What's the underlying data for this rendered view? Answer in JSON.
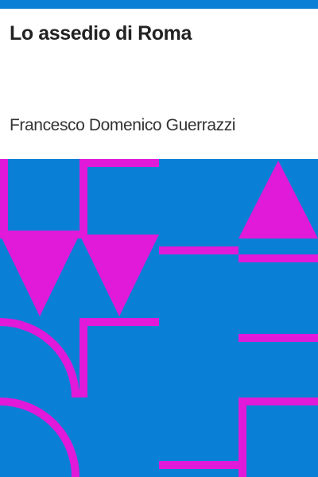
{
  "book": {
    "title": "Lo assedio di Roma",
    "author": "Francesco Domenico Guerrazzi"
  },
  "colors": {
    "top_bar": "#0a7fd6",
    "pattern_background": "#0a7fd6",
    "pattern_foreground": "#e01ad8",
    "title_text": "#222222",
    "author_text": "#333333"
  }
}
